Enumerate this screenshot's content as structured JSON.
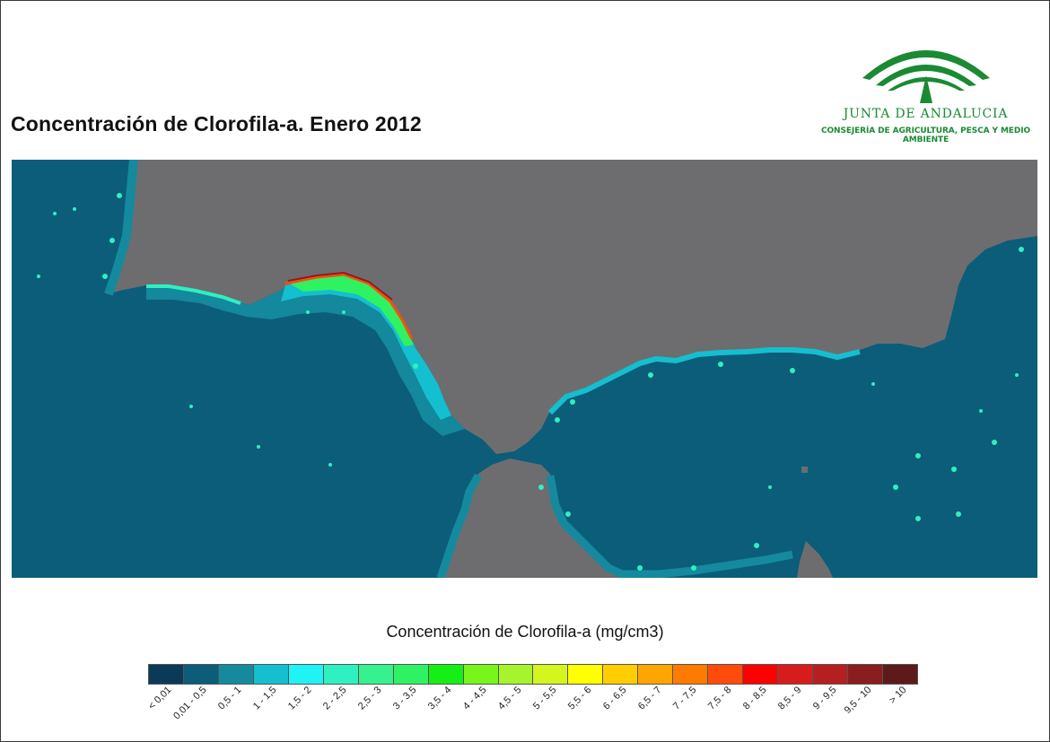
{
  "title": "Concentración de Clorofila-a. Enero 2012",
  "logo": {
    "organization": "JUNTA DE ANDALUCIA",
    "department": "CONSEJERÍA DE AGRICULTURA, PESCA Y MEDIO AMBIENTE",
    "icon": "junta-de-andalucia-logo",
    "color": "#1a8a33"
  },
  "map": {
    "land_color": "#6d6d70",
    "water_color": "#0b5d7a"
  },
  "legend": {
    "title": "Concentración de Clorofila-a (mg/cm3)",
    "classes": [
      {
        "label": "< 0,01",
        "color": "#0a3a58"
      },
      {
        "label": "0,01 - 0,5",
        "color": "#0b5d7a"
      },
      {
        "label": "0,5 - 1",
        "color": "#158a9e"
      },
      {
        "label": "1 - 1,5",
        "color": "#14bfcf"
      },
      {
        "label": "1,5 - 2",
        "color": "#1ff3f5"
      },
      {
        "label": "2 - 2,5",
        "color": "#2ff0c0"
      },
      {
        "label": "2,5 - 3",
        "color": "#35f28e"
      },
      {
        "label": "3 - 3,5",
        "color": "#2ff262"
      },
      {
        "label": "3,5 - 4",
        "color": "#16ef16"
      },
      {
        "label": "4 - 4,5",
        "color": "#78f51a"
      },
      {
        "label": "4,5 - 5",
        "color": "#a6f42d"
      },
      {
        "label": "5 - 5,5",
        "color": "#d4f51d"
      },
      {
        "label": "5,5 - 6",
        "color": "#ffff00"
      },
      {
        "label": "6 - 6,5",
        "color": "#ffcd00"
      },
      {
        "label": "6,5 - 7",
        "color": "#ffa500"
      },
      {
        "label": "7 - 7,5",
        "color": "#ff7b00"
      },
      {
        "label": "7,5 - 8",
        "color": "#ff4c0c"
      },
      {
        "label": "8 - 8,5",
        "color": "#ff0000"
      },
      {
        "label": "8,5 - 9",
        "color": "#d71c1c"
      },
      {
        "label": "9 - 9,5",
        "color": "#b61f1f"
      },
      {
        "label": "9,5 - 10",
        "color": "#8a1e1e"
      },
      {
        "label": "> 10",
        "color": "#5e1a1a"
      }
    ]
  }
}
